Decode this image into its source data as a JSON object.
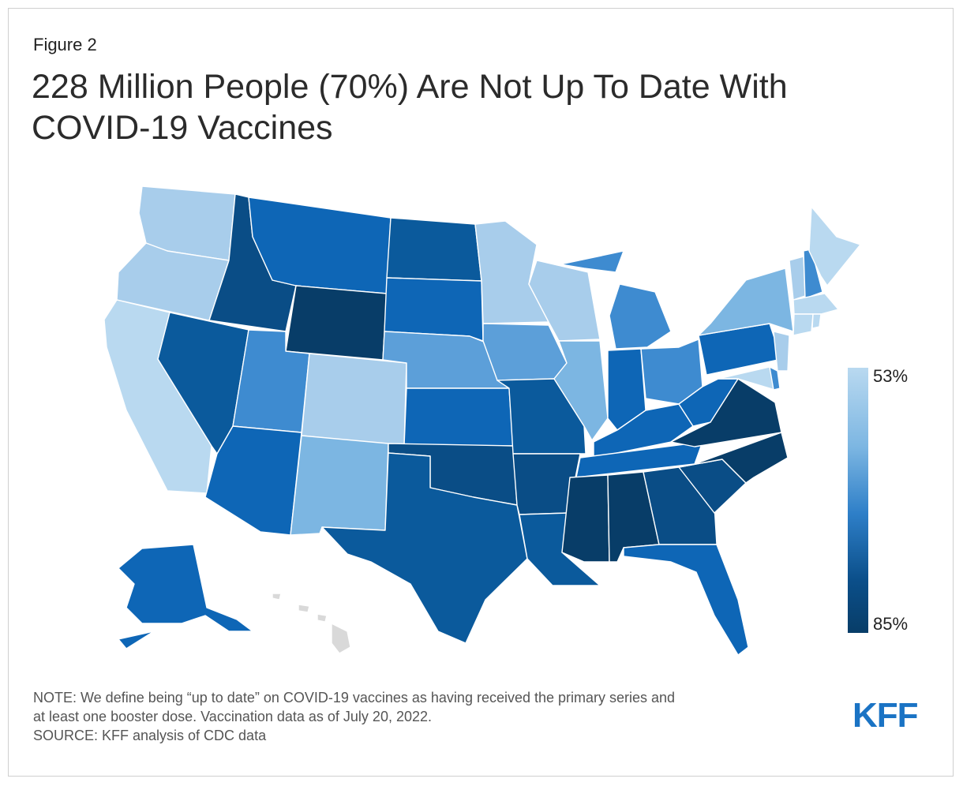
{
  "figure_label": "Figure 2",
  "title_line1": "228 Million People (70%) Are Not Up To Date With",
  "title_line2": "COVID-19 Vaccines",
  "legend": {
    "min_label": "53%",
    "max_label": "85%",
    "min_color": "#b9d9f0",
    "max_color": "#083d68"
  },
  "note_line1": "NOTE: We define being “up to date” on COVID-19 vaccines as having received the primary series and",
  "note_line2": "at least one booster dose. Vaccination data as of July 20, 2022.",
  "source": "SOURCE: KFF analysis of CDC data",
  "logo_text": "KFF",
  "no_data_color": "#d9d9d9",
  "colors": {
    "lightest": "#b9d9f0",
    "light": "#a8cdeb",
    "light_mid": "#7cb6e2",
    "mid_light": "#5c9fd9",
    "mid": "#3e8bd0",
    "blue": "#1f76c5",
    "blue_dark": "#0e66b6",
    "dark": "#0b5a9c",
    "darker": "#0a4d86",
    "darkest": "#083d68"
  }
}
